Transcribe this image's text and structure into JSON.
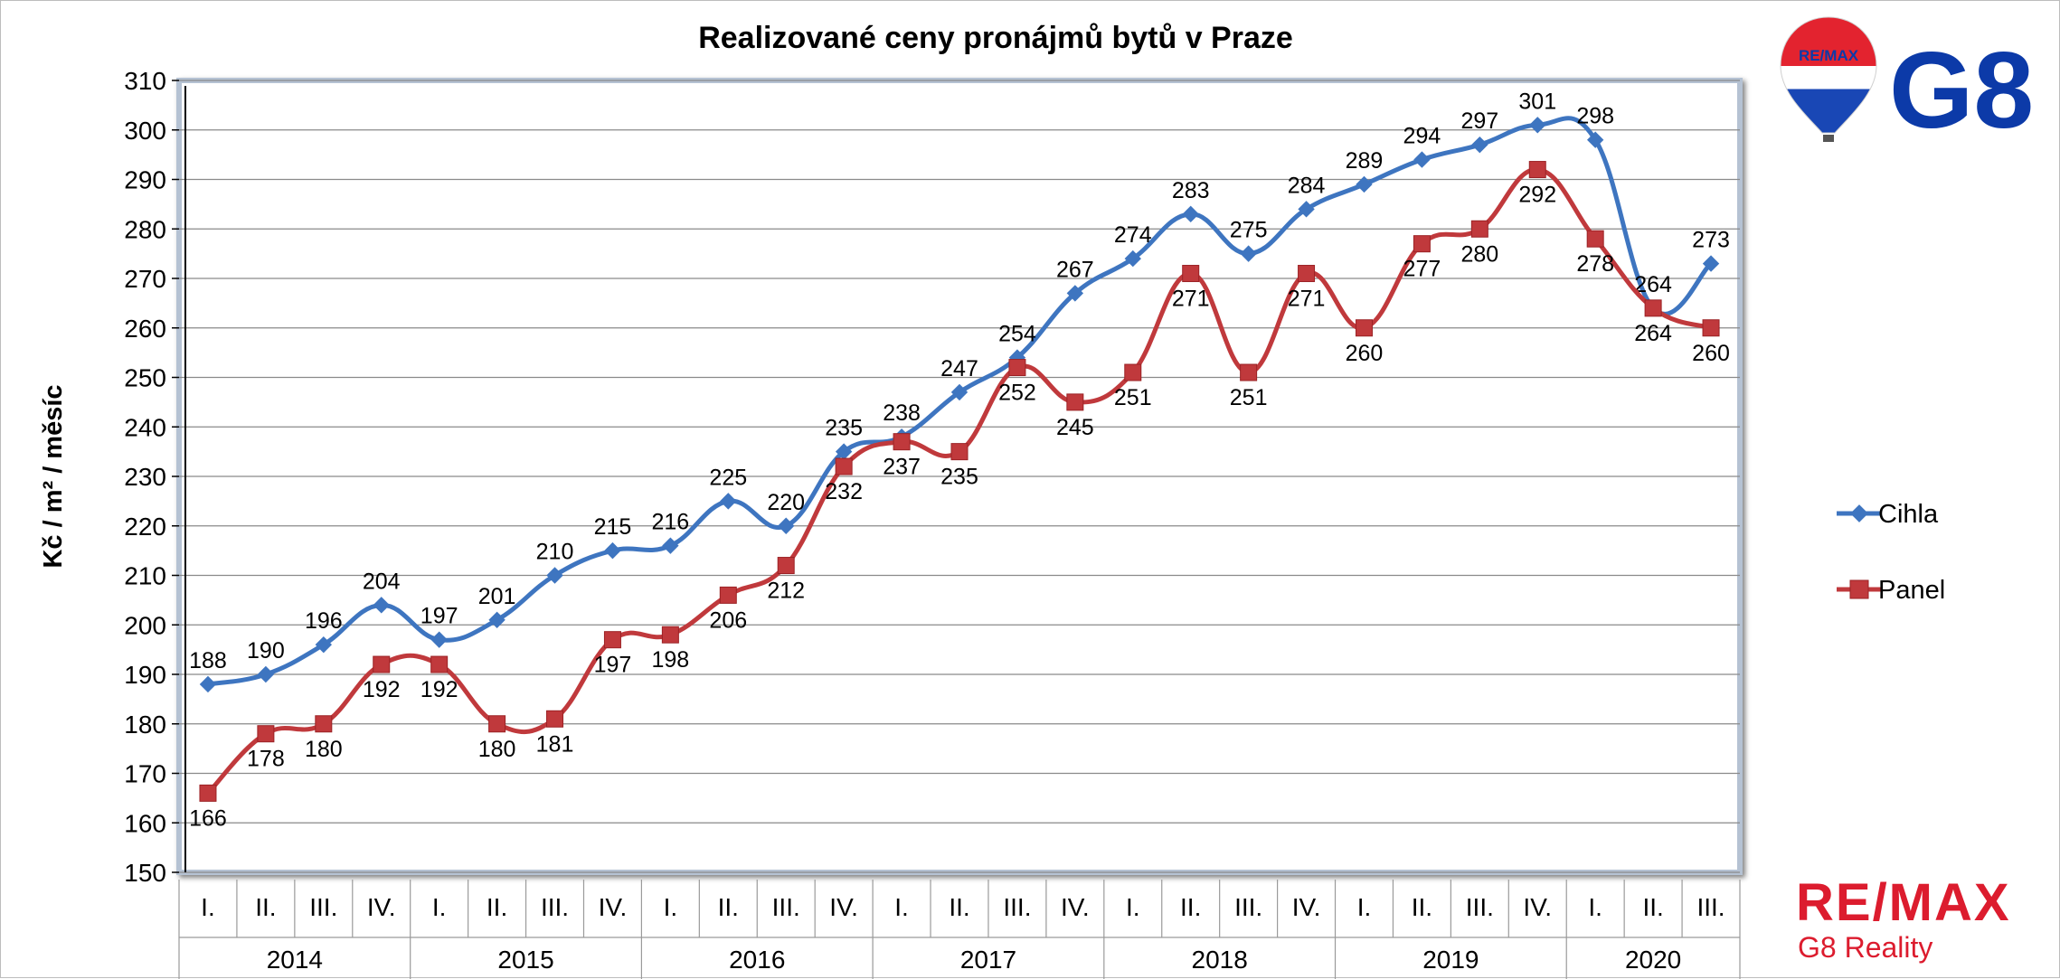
{
  "chart_data": {
    "type": "line",
    "title": "Realizované ceny pronájmů bytů v Praze",
    "ylabel": "Kč / m² / měsíc",
    "xlabel": "",
    "ylim": [
      150,
      310
    ],
    "ytick_step": 10,
    "grid": true,
    "legend": "right",
    "categories": [
      "I.",
      "II.",
      "III.",
      "IV.",
      "I.",
      "II.",
      "III.",
      "IV.",
      "I.",
      "II.",
      "III.",
      "IV.",
      "I.",
      "II.",
      "III.",
      "IV.",
      "I.",
      "II.",
      "III.",
      "IV.",
      "I.",
      "II.",
      "III.",
      "IV.",
      "I.",
      "II.",
      "III."
    ],
    "years": [
      {
        "label": "2014",
        "count": 4
      },
      {
        "label": "2015",
        "count": 4
      },
      {
        "label": "2016",
        "count": 4
      },
      {
        "label": "2017",
        "count": 4
      },
      {
        "label": "2018",
        "count": 4
      },
      {
        "label": "2019",
        "count": 4
      },
      {
        "label": "2020",
        "count": 3
      }
    ],
    "series": [
      {
        "name": "Cihla",
        "color": "#3e75c0",
        "marker": "diamond",
        "label_pos": "above",
        "values": [
          188,
          190,
          196,
          204,
          197,
          201,
          210,
          215,
          216,
          225,
          220,
          235,
          238,
          247,
          254,
          267,
          274,
          283,
          275,
          284,
          289,
          294,
          297,
          301,
          298,
          264,
          273
        ]
      },
      {
        "name": "Panel",
        "color": "#c0393c",
        "marker": "square",
        "label_pos": "below",
        "values": [
          166,
          178,
          180,
          192,
          192,
          180,
          181,
          197,
          198,
          206,
          212,
          232,
          237,
          235,
          252,
          245,
          251,
          271,
          251,
          271,
          260,
          277,
          280,
          292,
          278,
          264,
          260
        ]
      }
    ]
  },
  "branding": {
    "logo_top_balloon": "RE/MAX",
    "logo_top_g8": "G8",
    "logo_bottom_brand": "RE/MAX",
    "logo_bottom_sub": "G8 Reality",
    "colors": {
      "remax_red": "#dc1c2e",
      "remax_blue": "#0c3aa8"
    }
  }
}
